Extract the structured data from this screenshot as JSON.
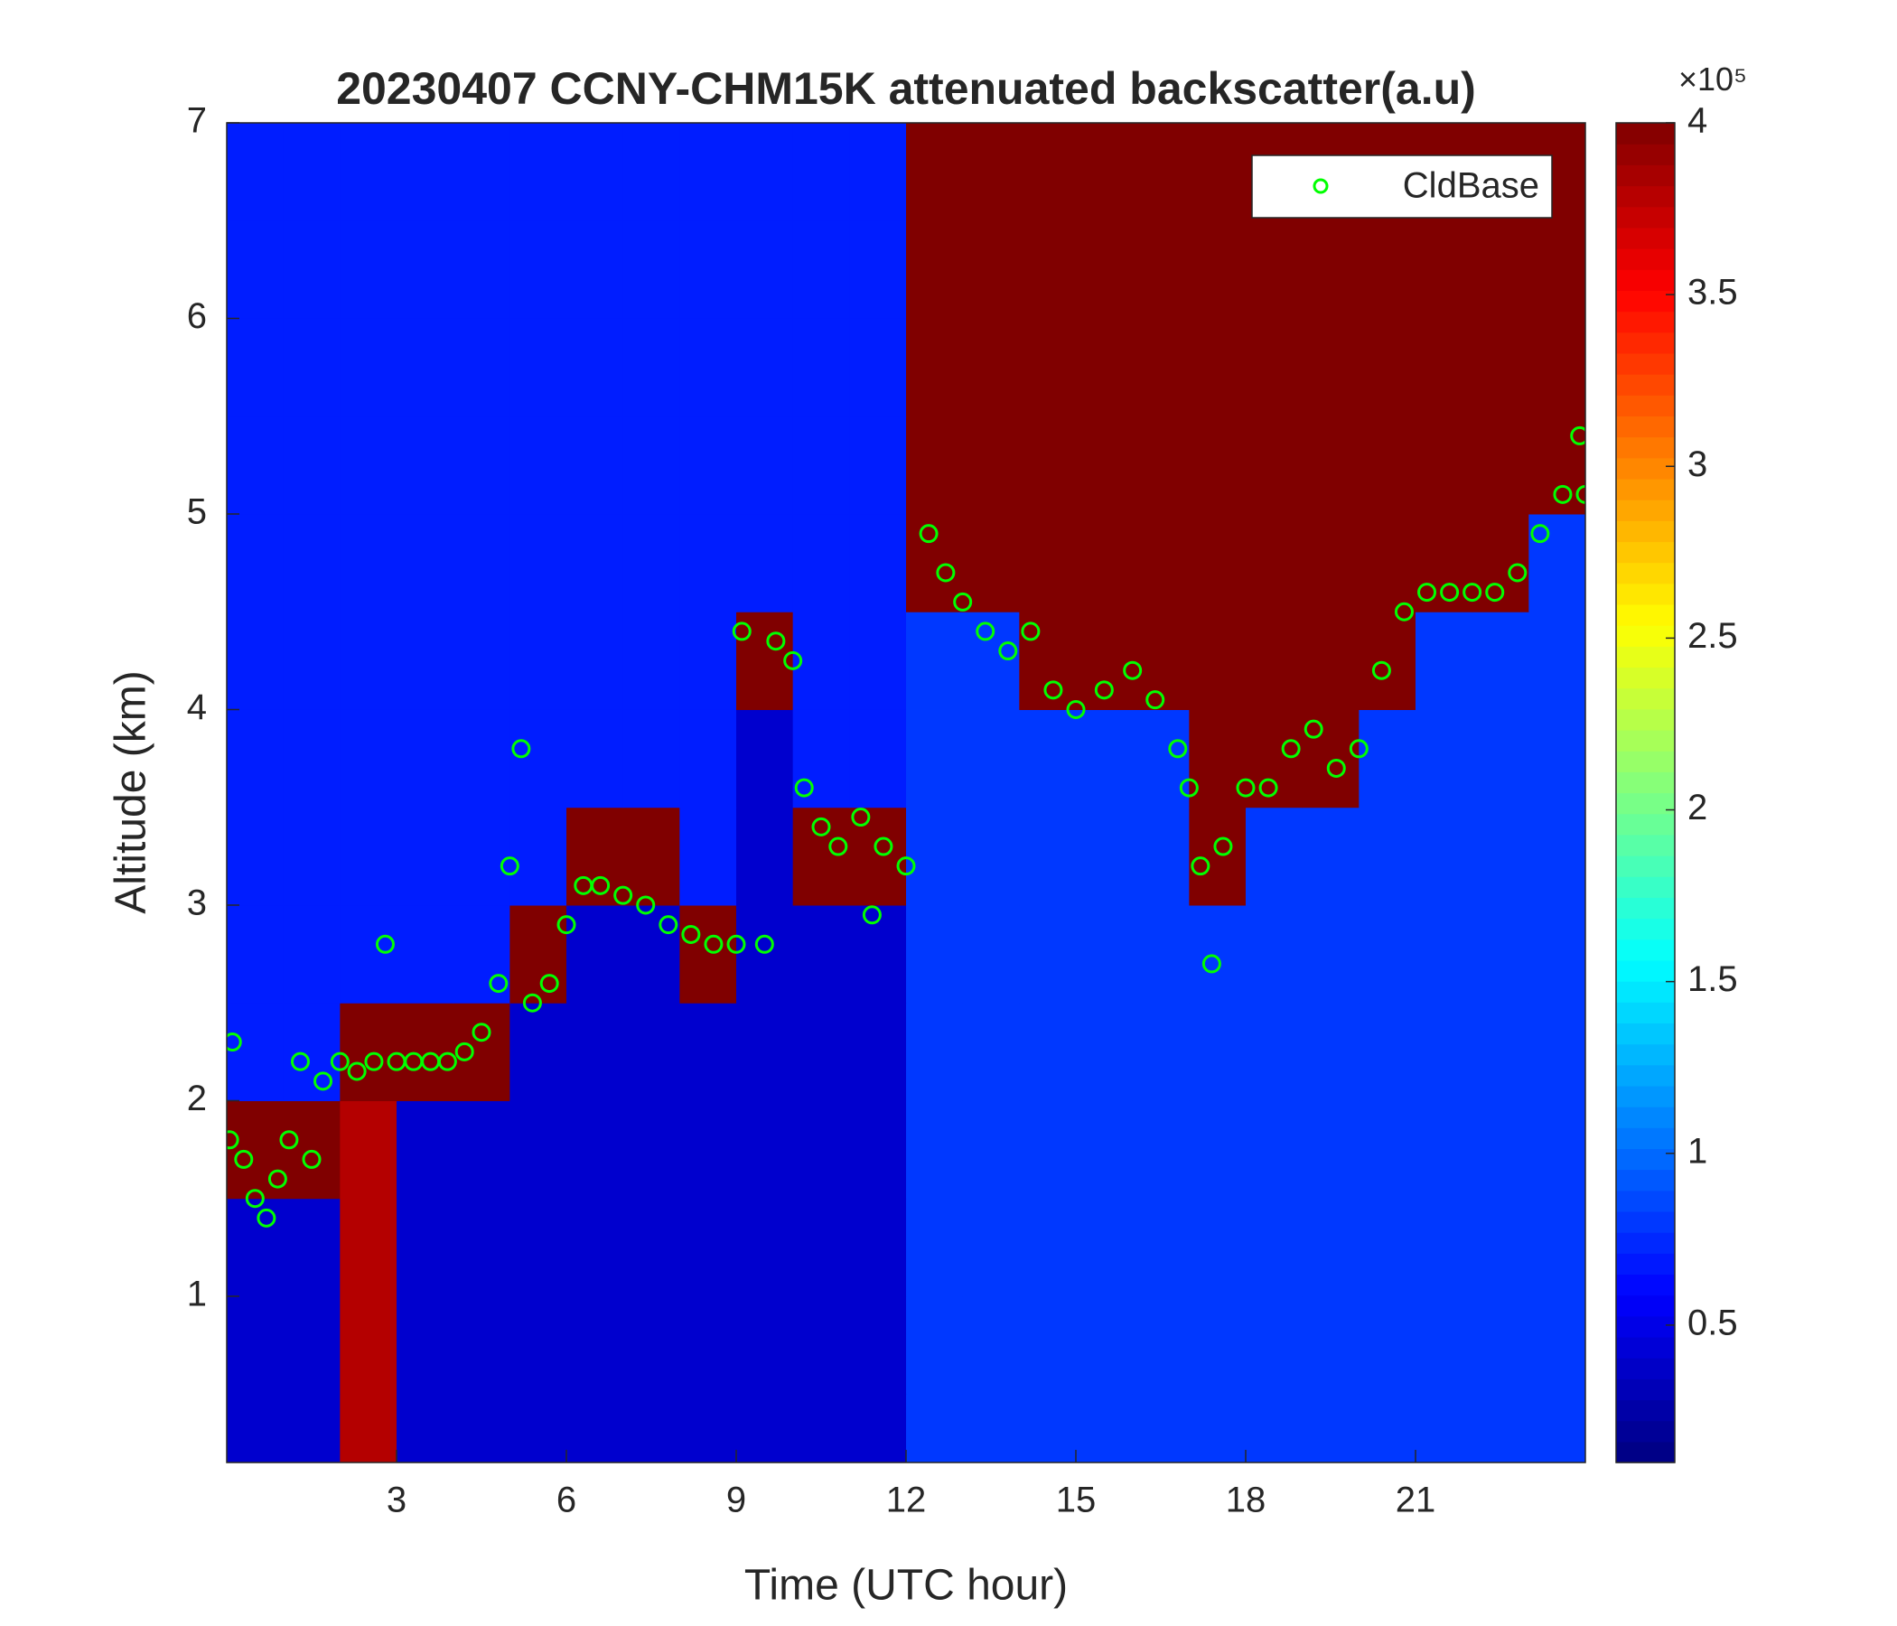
{
  "chart_data": {
    "type": "heatmap",
    "title": "20230407 CCNY-CHM15K attenuated backscatter(a.u)",
    "xlabel": "Time (UTC hour)",
    "ylabel": "Altitude (km)",
    "xlim": [
      0,
      24
    ],
    "xticks": [
      3,
      6,
      9,
      12,
      15,
      18,
      21
    ],
    "ylim": [
      0.15,
      7
    ],
    "yticks": [
      1,
      2,
      3,
      4,
      5,
      6,
      7
    ],
    "x_edges": [
      0,
      1,
      2,
      3,
      4,
      5,
      6,
      7,
      8,
      9,
      10,
      11,
      12,
      13,
      14,
      15,
      16,
      17,
      18,
      19,
      20,
      21,
      22,
      23,
      24
    ],
    "y_edges": [
      0.15,
      0.5,
      1,
      1.5,
      2,
      2.5,
      3,
      3.5,
      4,
      4.5,
      5,
      5.5,
      6,
      6.5,
      7
    ],
    "colormap": "jet",
    "clim": [
      0.1,
      4
    ],
    "colorbar_ticks": [
      0.5,
      1,
      1.5,
      2,
      2.5,
      3,
      3.5,
      4
    ],
    "colorbar_exponent_label": "×10⁵",
    "z": [
      [
        0.4,
        0.4,
        3.8,
        0.4,
        0.4,
        0.4,
        0.4,
        0.4,
        0.4,
        0.4,
        0.4,
        0.4,
        0.8,
        0.8,
        0.8,
        0.8,
        0.8,
        0.8,
        0.8,
        0.8,
        0.8,
        0.8,
        0.8,
        0.8
      ],
      [
        0.4,
        0.4,
        3.8,
        0.4,
        0.4,
        0.4,
        0.4,
        0.4,
        0.4,
        0.4,
        0.4,
        0.4,
        0.8,
        0.8,
        0.8,
        0.8,
        0.8,
        0.8,
        0.8,
        0.8,
        0.8,
        0.8,
        0.8,
        0.8
      ],
      [
        0.4,
        0.4,
        3.8,
        0.4,
        0.4,
        0.4,
        0.4,
        0.4,
        0.4,
        0.4,
        0.4,
        0.4,
        0.8,
        0.8,
        0.8,
        0.8,
        0.8,
        0.8,
        0.8,
        0.8,
        0.8,
        0.8,
        0.8,
        0.8
      ],
      [
        4,
        4,
        3.8,
        0.4,
        0.4,
        0.4,
        0.4,
        0.4,
        0.4,
        0.4,
        0.4,
        0.4,
        0.8,
        0.8,
        0.8,
        0.8,
        0.8,
        0.8,
        0.8,
        0.8,
        0.8,
        0.8,
        0.8,
        0.8
      ],
      [
        0.7,
        0.7,
        4,
        4,
        4,
        0.4,
        0.4,
        0.4,
        0.4,
        0.4,
        0.4,
        0.4,
        0.8,
        0.8,
        0.8,
        0.8,
        0.8,
        0.8,
        0.8,
        0.8,
        0.8,
        0.8,
        0.8,
        0.8
      ],
      [
        0.7,
        0.7,
        0.7,
        0.7,
        0.7,
        4,
        0.4,
        0.4,
        4,
        0.4,
        0.4,
        0.4,
        0.8,
        0.8,
        0.8,
        0.8,
        0.8,
        0.8,
        0.8,
        0.8,
        0.8,
        0.8,
        0.8,
        0.8
      ],
      [
        0.7,
        0.7,
        0.7,
        0.7,
        0.7,
        0.7,
        4,
        4,
        0.7,
        0.4,
        4,
        4,
        0.8,
        0.8,
        0.8,
        0.8,
        0.8,
        4,
        0.8,
        0.8,
        0.8,
        0.8,
        0.8,
        0.8
      ],
      [
        0.7,
        0.7,
        0.7,
        0.7,
        0.7,
        0.7,
        0.7,
        0.7,
        0.7,
        0.4,
        0.7,
        0.7,
        0.8,
        0.8,
        0.8,
        0.8,
        0.8,
        4,
        4,
        4,
        0.8,
        0.8,
        0.8,
        0.8
      ],
      [
        0.7,
        0.7,
        0.7,
        0.7,
        0.7,
        0.7,
        0.7,
        0.7,
        0.7,
        4,
        0.7,
        0.7,
        0.8,
        0.8,
        4,
        4,
        4,
        4,
        4,
        4,
        4,
        0.8,
        0.8,
        0.8
      ],
      [
        0.7,
        0.7,
        0.7,
        0.7,
        0.7,
        0.7,
        0.7,
        0.7,
        0.7,
        0.7,
        0.7,
        0.7,
        4,
        4,
        4,
        4,
        4,
        4,
        4,
        4,
        4,
        4,
        4,
        0.8
      ],
      [
        0.7,
        0.7,
        0.7,
        0.7,
        0.7,
        0.7,
        0.7,
        0.7,
        0.7,
        0.7,
        0.7,
        0.7,
        4,
        4,
        4,
        4,
        4,
        4,
        4,
        4,
        4,
        4,
        4,
        4
      ],
      [
        0.7,
        0.7,
        0.7,
        0.7,
        0.7,
        0.7,
        0.7,
        0.7,
        0.7,
        0.7,
        0.7,
        0.7,
        4,
        4,
        4,
        4,
        4,
        4,
        4,
        4,
        4,
        4,
        4,
        4
      ],
      [
        0.7,
        0.7,
        0.7,
        0.7,
        0.7,
        0.7,
        0.7,
        0.7,
        0.7,
        0.7,
        0.7,
        0.7,
        4,
        4,
        4,
        4,
        4,
        4,
        4,
        4,
        4,
        4,
        4,
        4
      ],
      [
        0.7,
        0.7,
        0.7,
        0.7,
        0.7,
        0.7,
        0.7,
        0.7,
        0.7,
        0.7,
        0.7,
        0.7,
        4,
        4,
        4,
        4,
        4,
        4,
        4,
        4,
        4,
        4,
        4,
        4
      ]
    ],
    "series": [
      {
        "name": "CldBase",
        "color": "#00ff00",
        "x": [
          0.05,
          0.1,
          0.3,
          0.5,
          0.7,
          0.9,
          1.1,
          1.3,
          1.5,
          1.7,
          2.0,
          2.3,
          2.6,
          2.8,
          3.0,
          3.3,
          3.6,
          3.9,
          4.2,
          4.5,
          4.8,
          5.0,
          5.2,
          5.4,
          5.7,
          6.0,
          6.3,
          6.6,
          7.0,
          7.4,
          7.8,
          8.2,
          8.6,
          9.0,
          9.1,
          9.5,
          9.7,
          10.0,
          10.2,
          10.5,
          10.8,
          11.2,
          11.6,
          11.4,
          12.0,
          12.4,
          12.7,
          13.0,
          13.4,
          13.8,
          14.2,
          14.6,
          15.0,
          15.5,
          16.0,
          16.4,
          16.8,
          17.0,
          17.2,
          17.4,
          17.6,
          18.0,
          18.4,
          18.8,
          19.2,
          19.6,
          20.0,
          20.4,
          20.8,
          21.2,
          21.6,
          22.0,
          22.4,
          22.8,
          23.2,
          23.6,
          23.9,
          24.0
        ],
        "values": [
          1.8,
          2.3,
          1.7,
          1.5,
          1.4,
          1.6,
          1.8,
          2.2,
          1.7,
          2.1,
          2.2,
          2.15,
          2.2,
          2.8,
          2.2,
          2.2,
          2.2,
          2.2,
          2.25,
          2.35,
          2.6,
          3.2,
          3.8,
          2.5,
          2.6,
          2.9,
          3.1,
          3.1,
          3.05,
          3.0,
          2.9,
          2.85,
          2.8,
          2.8,
          4.4,
          2.8,
          4.35,
          4.25,
          3.6,
          3.4,
          3.3,
          3.45,
          3.3,
          2.95,
          3.2,
          4.9,
          4.7,
          4.55,
          4.4,
          4.3,
          4.4,
          4.1,
          4.0,
          4.1,
          4.2,
          4.05,
          3.8,
          3.6,
          3.2,
          2.7,
          3.3,
          3.6,
          3.6,
          3.8,
          3.9,
          3.7,
          3.8,
          4.2,
          4.5,
          4.6,
          4.6,
          4.6,
          4.6,
          4.7,
          4.9,
          5.1,
          5.4,
          5.1
        ]
      }
    ]
  }
}
